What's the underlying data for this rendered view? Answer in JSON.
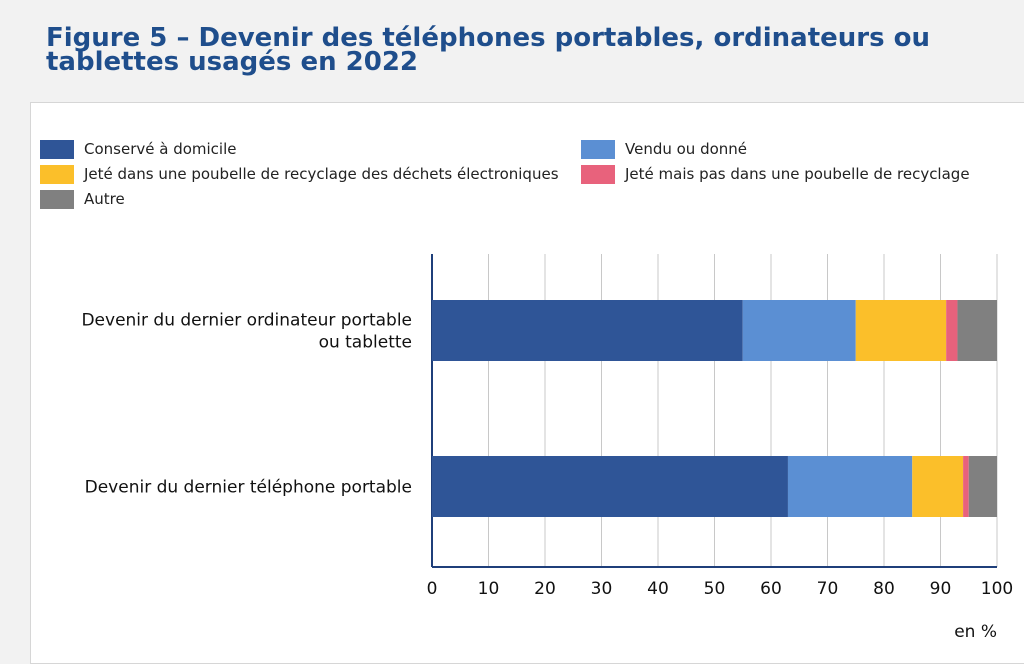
{
  "page": {
    "title": "Figure 5 – Devenir des téléphones portables, ordinateurs ou tablettes usagés en 2022"
  },
  "chart_data": {
    "type": "bar",
    "orientation": "horizontal",
    "stacked": true,
    "categories": [
      "Devenir du dernier ordinateur portable ou tablette",
      "Devenir du dernier téléphone portable"
    ],
    "series": [
      {
        "name": "Conservé à domicile",
        "color": "#2f5597",
        "values": [
          55,
          63
        ]
      },
      {
        "name": "Vendu ou donné",
        "color": "#5b8fd3",
        "values": [
          20,
          22
        ]
      },
      {
        "name": "Jeté dans une poubelle de recyclage des déchets électroniques",
        "color": "#fbbf2a",
        "values": [
          16,
          9
        ]
      },
      {
        "name": "Jeté mais pas dans une poubelle de recyclage",
        "color": "#e8627c",
        "values": [
          2,
          1
        ]
      },
      {
        "name": "Autre",
        "color": "#808080",
        "values": [
          7,
          5
        ]
      }
    ],
    "xlim": [
      0,
      100
    ],
    "xticks": [
      0,
      10,
      20,
      30,
      40,
      50,
      60,
      70,
      80,
      90,
      100
    ],
    "xlabel": "en %",
    "ylabel": "",
    "grid": "vertical",
    "legend_position": "top"
  }
}
